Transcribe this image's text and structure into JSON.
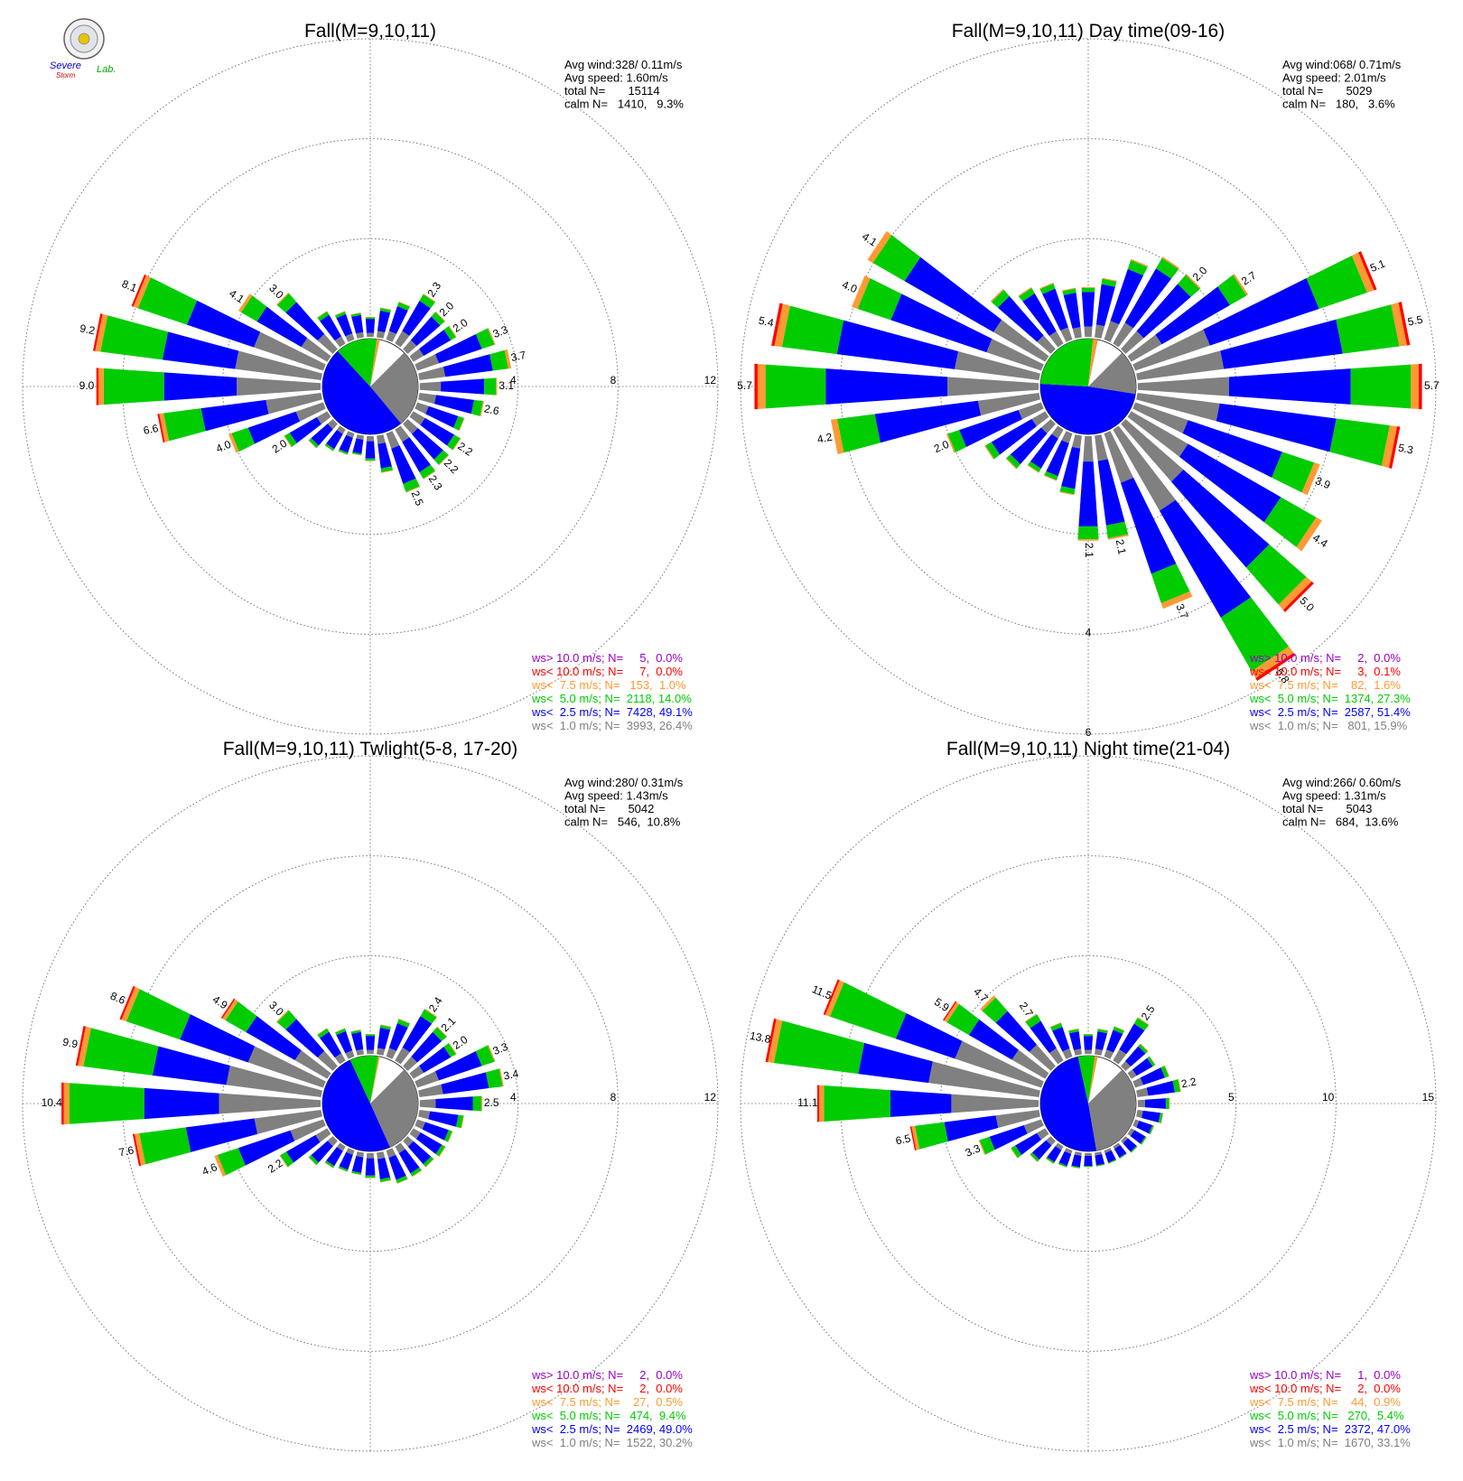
{
  "logo": {
    "line1": "Severe",
    "line2": "Storm",
    "line3": "Lab."
  },
  "colors": {
    "gt10": "#9900cc",
    "lt10": "#ff0000",
    "lt75": "#ff9933",
    "lt5": "#00cc00",
    "lt25": "#0000ff",
    "lt1": "#808080"
  },
  "chart_data": [
    {
      "type": "windrose",
      "title": "Fall(M=9,10,11)",
      "info": [
        "Avg wind:328/ 0.11m/s",
        "Avg speed: 1.60m/s",
        "total N=       15114",
        "calm N=   1410,   9.3%"
      ],
      "rings": [
        4,
        8,
        12
      ],
      "ring_label_position": "east",
      "legend": [
        "ws> 10.0 m/s; N=     5,  0.0%",
        "ws< 10.0 m/s; N=     7,  0.0%",
        "ws<  7.5 m/s; N=   153,  1.0%",
        "ws<  5.0 m/s; N=  2118, 14.0%",
        "ws<  2.5 m/s; N=  7428, 49.1%",
        "ws<  1.0 m/s; N=  3993, 26.4%"
      ],
      "pie": [
        26.4,
        49.1,
        14.0,
        1.0,
        0.0,
        0.0
      ],
      "totals": [
        0.8,
        1.2,
        1.6,
        2.3,
        2.0,
        2.0,
        3.3,
        3.7,
        3.1,
        2.6,
        2.0,
        2.2,
        2.2,
        2.3,
        2.5,
        1.5,
        1.0,
        0.8,
        0.9,
        1.0,
        1.3,
        2.0,
        4.0,
        6.6,
        9.0,
        9.2,
        8.1,
        4.1,
        3.0,
        1.5,
        1.2,
        1.0
      ],
      "labels": {
        "3": "2.3",
        "4": "2.0",
        "5": "2.0",
        "6": "3.3",
        "7": "3.7",
        "8": "3.1",
        "9": "2.6",
        "11": "2.2",
        "12": "2.2",
        "13": "2.3",
        "14": "2.5",
        "21": "2.0",
        "22": "4.0",
        "23": "6.6",
        "24": "9.0",
        "25": "9.2",
        "26": "8.1",
        "27": "4.1",
        "28": "3.0"
      }
    },
    {
      "type": "windrose",
      "title": "Fall(M=9,10,11) Day time(09-16)",
      "info": [
        "Avg wind:068/ 0.71m/s",
        "Avg speed: 2.01m/s",
        "total N=       5029",
        "calm N=   180,   3.6%"
      ],
      "rings": [
        2,
        4,
        6
      ],
      "ring_label_position": "south",
      "legend": [
        "ws> 10.0 m/s; N=     2,  0.0%",
        "ws< 10.0 m/s; N=     3,  0.1%",
        "ws<  7.5 m/s; N=    82,  1.6%",
        "ws<  5.0 m/s; N=  1374, 27.3%",
        "ws<  2.5 m/s; N=  2587, 51.4%",
        "ws<  1.0 m/s; N=   801, 15.9%"
      ],
      "pie": [
        15.9,
        51.4,
        27.3,
        1.6,
        0.1,
        0.0
      ],
      "totals": [
        1.0,
        1.2,
        1.7,
        2.0,
        2.0,
        2.7,
        5.1,
        5.5,
        5.7,
        5.3,
        3.9,
        4.4,
        5.0,
        5.8,
        3.7,
        2.1,
        2.1,
        1.2,
        1.0,
        1.0,
        1.2,
        1.4,
        2.0,
        4.2,
        5.7,
        5.4,
        4.0,
        4.1,
        1.6,
        1.3,
        1.2,
        1.0
      ],
      "labels": {
        "4": "2.0",
        "5": "2.7",
        "6": "5.1",
        "7": "5.5",
        "8": "5.7",
        "9": "5.3",
        "10": "3.9",
        "11": "4.4",
        "12": "5.0",
        "13": "5.8",
        "14": "3.7",
        "15": "2.1",
        "16": "2.1",
        "22": "2.0",
        "23": "4.2",
        "24": "5.7",
        "25": "5.4",
        "26": "4.0",
        "27": "4.1"
      }
    },
    {
      "type": "windrose",
      "title": "Fall(M=9,10,11) Twlight(5-8, 17-20)",
      "info": [
        "Avg wind:280/ 0.31m/s",
        "Avg speed: 1.43m/s",
        "total N=       5042",
        "calm N=   546,  10.8%"
      ],
      "rings": [
        4,
        8,
        12
      ],
      "ring_label_position": "east",
      "legend": [
        "ws> 10.0 m/s; N=     2,  0.0%",
        "ws< 10.0 m/s; N=     2,  0.0%",
        "ws<  7.5 m/s; N=    27,  0.5%",
        "ws<  5.0 m/s; N=   474,  9.4%",
        "ws<  2.5 m/s; N=  2469, 49.0%",
        "ws<  1.0 m/s; N=  1522, 30.2%"
      ],
      "pie": [
        30.2,
        49.0,
        9.4,
        0.5,
        0.0,
        0.0
      ],
      "totals": [
        0.8,
        1.2,
        1.6,
        2.4,
        2.1,
        2.0,
        3.3,
        3.4,
        2.5,
        1.8,
        1.5,
        1.5,
        1.4,
        1.4,
        1.4,
        1.2,
        1.0,
        0.9,
        0.9,
        1.0,
        1.3,
        2.2,
        4.6,
        7.6,
        10.4,
        9.9,
        8.6,
        4.9,
        3.0,
        1.5,
        1.2,
        1.0
      ],
      "labels": {
        "3": "2.4",
        "4": "2.1",
        "5": "2.0",
        "6": "3.3",
        "7": "3.4",
        "8": "2.5",
        "21": "2.2",
        "22": "4.6",
        "23": "7.6",
        "24": "10.4",
        "25": "9.9",
        "26": "8.6",
        "27": "4.9",
        "28": "3.0"
      }
    },
    {
      "type": "windrose",
      "title": "Fall(M=9,10,11) Night time(21-04)",
      "info": [
        "Avg wind:266/ 0.60m/s",
        "Avg speed: 1.31m/s",
        "total N=       5043",
        "calm N=   684,  13.6%"
      ],
      "rings": [
        5,
        10,
        15
      ],
      "ring_label_position": "east",
      "legend": [
        "ws> 10.0 m/s; N=     1,  0.0%",
        "ws< 10.0 m/s; N=     2,  0.0%",
        "ws<  7.5 m/s; N=    44,  0.9%",
        "ws<  5.0 m/s; N=   270,  5.4%",
        "ws<  2.5 m/s; N=  2372, 47.0%",
        "ws<  1.0 m/s; N=  1670, 33.1%"
      ],
      "pie": [
        33.1,
        47.0,
        5.4,
        0.9,
        0.0,
        0.0
      ],
      "totals": [
        1.0,
        1.3,
        1.6,
        2.5,
        1.5,
        1.4,
        1.8,
        2.2,
        1.6,
        1.3,
        1.0,
        0.9,
        0.8,
        0.7,
        0.7,
        0.7,
        0.7,
        0.8,
        0.9,
        1.0,
        1.4,
        2.0,
        3.3,
        6.5,
        11.1,
        13.8,
        11.5,
        5.9,
        4.7,
        2.7,
        1.8,
        1.3
      ],
      "labels": {
        "3": "2.5",
        "7": "2.2",
        "22": "3.3",
        "23": "6.5",
        "24": "11.1",
        "25": "13.8",
        "26": "11.5",
        "27": "5.9",
        "28": "4.7",
        "29": "2.7"
      }
    }
  ]
}
